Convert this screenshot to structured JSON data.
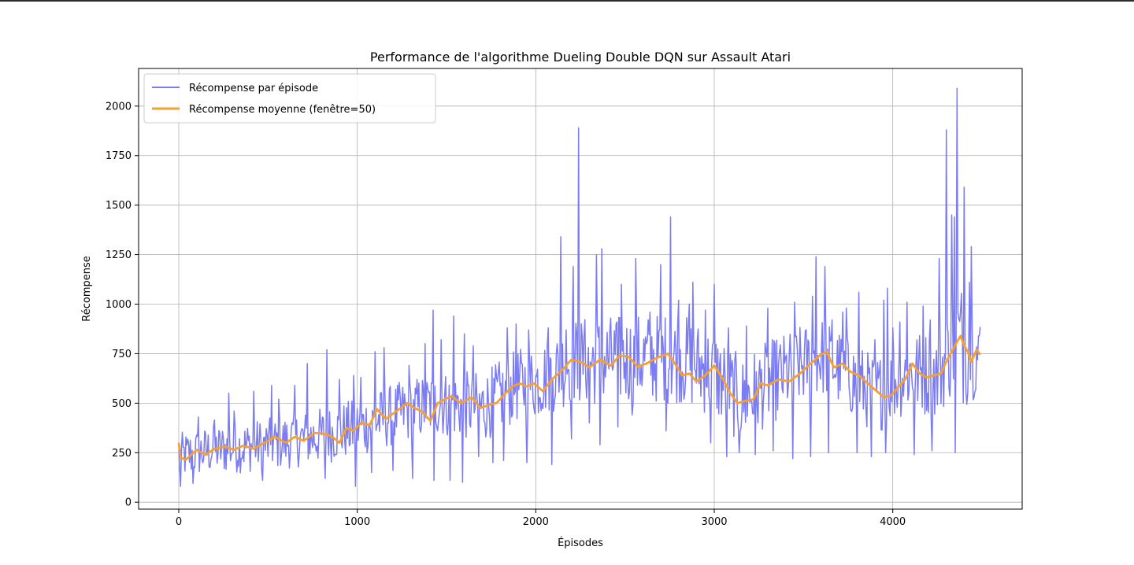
{
  "chart_data": {
    "type": "line",
    "title": "Performance de l'algorithme Dueling Double DQN sur Assault Atari",
    "xlabel": "Épisodes",
    "ylabel": "Récompense",
    "xlim": [
      -225,
      4725
    ],
    "ylim": [
      -35,
      2190
    ],
    "xticks": [
      0,
      1000,
      2000,
      3000,
      4000
    ],
    "yticks": [
      0,
      250,
      500,
      750,
      1000,
      1250,
      1500,
      1750,
      2000
    ],
    "grid": true,
    "legend_position": "top-left",
    "colors": {
      "raw": "#7b7bf2",
      "avg": "#f5a030"
    },
    "series": [
      {
        "name": "Récompense par épisode",
        "trend": {
          "x": [
            0,
            200,
            500,
            800,
            1000,
            1200,
            1450,
            1700,
            1900,
            2000,
            2200,
            2500,
            2800,
            3000,
            3150,
            3300,
            3600,
            3900,
            4100,
            4250,
            4360,
            4480
          ],
          "y": [
            230,
            265,
            290,
            335,
            375,
            440,
            500,
            480,
            590,
            605,
            710,
            720,
            730,
            650,
            510,
            600,
            740,
            540,
            660,
            640,
            830,
            745
          ]
        },
        "spread": {
          "x": [
            0,
            1000,
            2000,
            2300,
            3000,
            3600,
            4000,
            4300,
            4400,
            4480
          ],
          "y": [
            120,
            150,
            190,
            230,
            230,
            200,
            200,
            230,
            330,
            200
          ]
        },
        "peaks": {
          "x": [
            110,
            200,
            280,
            310,
            420,
            520,
            560,
            650,
            720,
            830,
            900,
            980,
            1020,
            1100,
            1150,
            1290,
            1380,
            1425,
            1470,
            1540,
            1600,
            1650,
            1840,
            1890,
            1960,
            2070,
            2140,
            2170,
            2210,
            2240,
            2270,
            2340,
            2370,
            2450,
            2480,
            2560,
            2640,
            2700,
            2755,
            2800,
            2860,
            2880,
            2950,
            3000,
            3080,
            3180,
            3300,
            3450,
            3550,
            3570,
            3620,
            3660,
            3720,
            3740,
            3810,
            3900,
            3950,
            3970,
            4000,
            4040,
            4080,
            4170,
            4210,
            4260,
            4300,
            4330,
            4345,
            4360,
            4400,
            4430,
            4440,
            4480
          ],
          "y": [
            430,
            415,
            550,
            460,
            560,
            590,
            520,
            590,
            700,
            770,
            620,
            640,
            630,
            760,
            780,
            690,
            800,
            970,
            820,
            940,
            850,
            790,
            880,
            900,
            870,
            880,
            1340,
            870,
            1190,
            1890,
            830,
            1250,
            1280,
            900,
            1100,
            1230,
            960,
            1200,
            1440,
            1020,
            1000,
            1110,
            970,
            1100,
            880,
            890,
            980,
            1010,
            1040,
            1240,
            1190,
            920,
            960,
            980,
            1060,
            820,
            1020,
            1080,
            880,
            910,
            1010,
            990,
            920,
            1230,
            1880,
            1450,
            1440,
            2090,
            1590,
            1110,
            1290,
            840
          ]
        },
        "dips": {
          "x": [
            10,
            80,
            200,
            310,
            470,
            560,
            650,
            820,
            900,
            990,
            1080,
            1200,
            1310,
            1430,
            1520,
            1590,
            1680,
            1760,
            1820,
            1950,
            2090,
            2200,
            2300,
            2360,
            2460,
            2540,
            2640,
            2730,
            2800,
            2880,
            2980,
            3070,
            3140,
            3230,
            3330,
            3440,
            3540,
            3640,
            3720,
            3800,
            3880,
            3960,
            4040,
            4120,
            4220,
            4350,
            4430
          ],
          "y": [
            80,
            95,
            100,
            105,
            110,
            90,
            100,
            120,
            60,
            80,
            150,
            160,
            120,
            110,
            110,
            100,
            230,
            200,
            210,
            200,
            190,
            320,
            400,
            290,
            380,
            440,
            300,
            360,
            340,
            270,
            300,
            230,
            250,
            240,
            260,
            220,
            230,
            250,
            230,
            250,
            230,
            250,
            240,
            240,
            260,
            250,
            330
          ]
        }
      },
      {
        "name": "Récompense moyenne (fenêtre=50)",
        "x": [
          0,
          10,
          40,
          100,
          150,
          200,
          260,
          310,
          360,
          420,
          480,
          540,
          600,
          650,
          700,
          760,
          820,
          860,
          900,
          940,
          980,
          1020,
          1070,
          1110,
          1160,
          1220,
          1280,
          1320,
          1360,
          1410,
          1450,
          1490,
          1530,
          1580,
          1640,
          1690,
          1730,
          1780,
          1830,
          1870,
          1910,
          1950,
          1990,
          2040,
          2090,
          2140,
          2200,
          2260,
          2300,
          2360,
          2420,
          2470,
          2520,
          2570,
          2620,
          2680,
          2740,
          2780,
          2820,
          2860,
          2900,
          2950,
          3000,
          3050,
          3090,
          3130,
          3170,
          3220,
          3260,
          3300,
          3360,
          3420,
          3480,
          3540,
          3590,
          3630,
          3670,
          3720,
          3760,
          3810,
          3860,
          3910,
          3950,
          3990,
          4030,
          4070,
          4110,
          4150,
          4190,
          4230,
          4270,
          4300,
          4330,
          4360,
          4380,
          4400,
          4420,
          4440,
          4470,
          4490
        ],
        "y": [
          300,
          225,
          215,
          265,
          240,
          270,
          280,
          265,
          285,
          270,
          300,
          330,
          300,
          330,
          310,
          350,
          345,
          330,
          300,
          375,
          360,
          400,
          390,
          470,
          420,
          460,
          500,
          475,
          460,
          410,
          500,
          520,
          535,
          500,
          530,
          475,
          490,
          500,
          550,
          585,
          600,
          585,
          600,
          560,
          620,
          660,
          720,
          705,
          680,
          720,
          690,
          740,
          735,
          685,
          700,
          730,
          750,
          700,
          640,
          650,
          610,
          640,
          690,
          620,
          550,
          500,
          510,
          520,
          600,
          590,
          620,
          610,
          650,
          700,
          740,
          760,
          680,
          700,
          660,
          640,
          600,
          560,
          530,
          540,
          580,
          620,
          700,
          650,
          630,
          640,
          650,
          710,
          760,
          810,
          840,
          790,
          760,
          710,
          770,
          745
        ]
      }
    ]
  }
}
